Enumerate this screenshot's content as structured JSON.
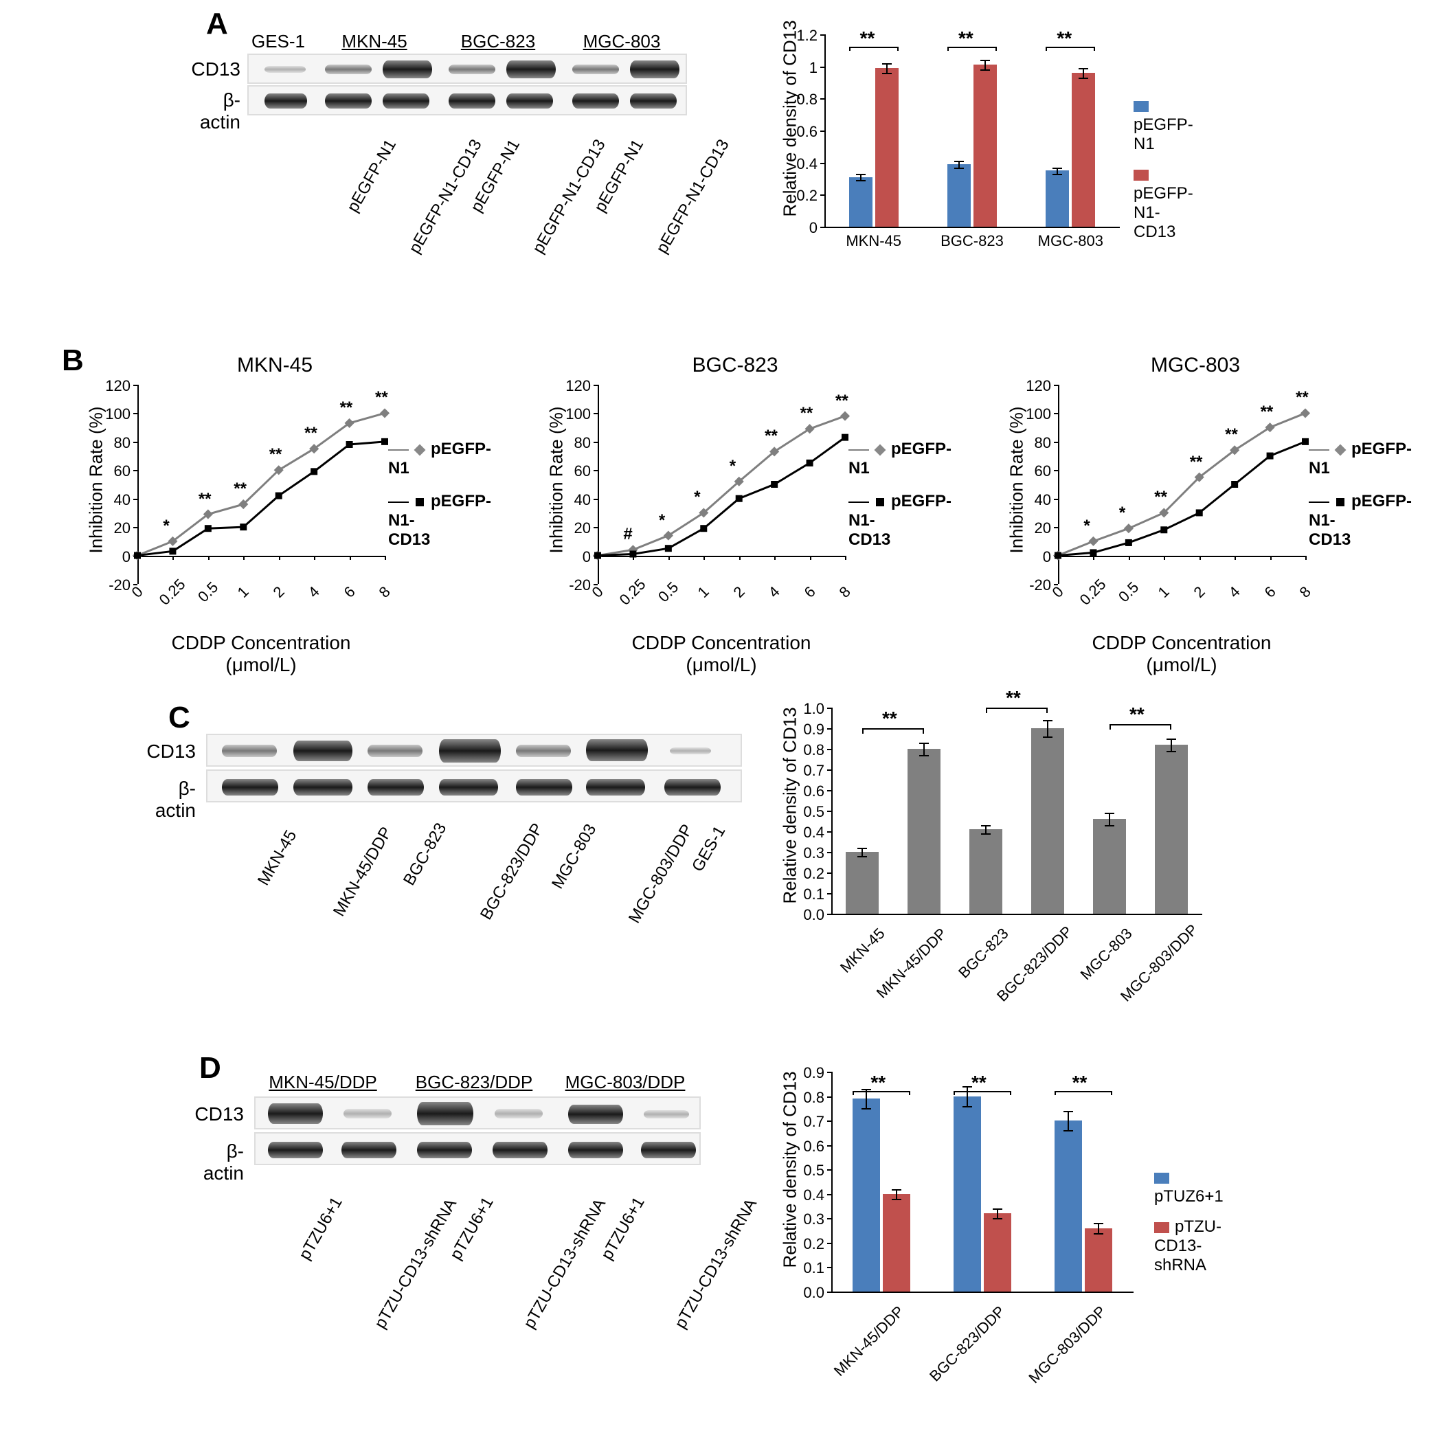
{
  "panels": {
    "A": "A",
    "B": "B",
    "C": "C",
    "D": "D"
  },
  "colors": {
    "blue": "#4a7ebb",
    "red": "#c0504d",
    "gray": "#808080",
    "line_gray": "#7f7f7f",
    "line_black": "#000000",
    "background": "#ffffff"
  },
  "panelA": {
    "blot": {
      "rows": [
        "CD13",
        "β-actin"
      ],
      "head_groups": [
        "GES-1",
        "MKN-45",
        "BGC-823",
        "MGC-803"
      ],
      "lane_labels": [
        "pEGFP-N1",
        "pEGFP-N1-CD13",
        "pEGFP-N1",
        "pEGFP-N1-CD13",
        "pEGFP-N1",
        "pEGFP-N1-CD13"
      ]
    },
    "chart": {
      "y_title": "Relative density of CD13",
      "ylim": [
        0,
        1.2
      ],
      "ytick_step": 0.2,
      "categories": [
        "MKN-45",
        "BGC-823",
        "MGC-803"
      ],
      "series": [
        {
          "name": "pEGFP-N1",
          "color": "#4a7ebb",
          "values": [
            0.31,
            0.39,
            0.35
          ],
          "err": [
            0.02,
            0.02,
            0.02
          ]
        },
        {
          "name": "pEGFP-N1-CD13",
          "color": "#c0504d",
          "values": [
            0.99,
            1.01,
            0.96
          ],
          "err": [
            0.03,
            0.03,
            0.03
          ]
        }
      ],
      "sig": [
        "**",
        "**",
        "**"
      ]
    }
  },
  "panelB": {
    "titles": [
      "MKN-45",
      "BGC-823",
      "MGC-803"
    ],
    "x_title": "CDDP Concentration (μmol/L)",
    "y_title": "Inhibition Rate (%)",
    "xticks": [
      "0",
      "0.25",
      "0.5",
      "1",
      "2",
      "4",
      "6",
      "8"
    ],
    "ylim": [
      -20,
      120
    ],
    "ytick_step": 20,
    "legend": [
      "pEGFP-N1",
      "pEGFP-N1-CD13"
    ],
    "charts": [
      {
        "s1": [
          0,
          10,
          29,
          36,
          60,
          75,
          93,
          100
        ],
        "s2": [
          0,
          3,
          19,
          20,
          42,
          59,
          78,
          80
        ],
        "sig": [
          "",
          "*",
          "**",
          "**",
          "**",
          "**",
          "**",
          "**"
        ]
      },
      {
        "s1": [
          0,
          4,
          14,
          30,
          52,
          73,
          89,
          98
        ],
        "s2": [
          0,
          1,
          5,
          19,
          40,
          50,
          65,
          83
        ],
        "sig": [
          "",
          "#",
          "*",
          "*",
          "*",
          "**",
          "**",
          "**"
        ]
      },
      {
        "s1": [
          0,
          10,
          19,
          30,
          55,
          74,
          90,
          100
        ],
        "s2": [
          0,
          2,
          9,
          18,
          30,
          50,
          70,
          80
        ],
        "sig": [
          "",
          "*",
          "*",
          "**",
          "**",
          "**",
          "**",
          "**"
        ]
      }
    ]
  },
  "panelC": {
    "blot": {
      "rows": [
        "CD13",
        "β-actin"
      ],
      "lanes": [
        "MKN-45",
        "MKN-45/DDP",
        "BGC-823",
        "BGC-823/DDP",
        "MGC-803",
        "MGC-803/DDP",
        "GES-1"
      ]
    },
    "chart": {
      "y_title": "Relative density of CD13",
      "ylim": [
        0,
        1
      ],
      "ytick_step": 0.1,
      "categories": [
        "MKN-45",
        "MKN-45/DDP",
        "BGC-823",
        "BGC-823/DDP",
        "MGC-803",
        "MGC-803/DDP"
      ],
      "values": [
        0.3,
        0.8,
        0.41,
        0.9,
        0.46,
        0.82
      ],
      "err": [
        0.02,
        0.03,
        0.02,
        0.04,
        0.03,
        0.03
      ],
      "sig": [
        "**",
        "**",
        "**"
      ]
    }
  },
  "panelD": {
    "blot": {
      "rows": [
        "CD13",
        "β-actin"
      ],
      "head_groups": [
        "MKN-45/DDP",
        "BGC-823/DDP",
        "MGC-803/DDP"
      ],
      "lane_labels": [
        "pTZU6+1",
        "pTZU-CD13-shRNA",
        "pTZU6+1",
        "pTZU-CD13-shRNA",
        "pTZU6+1",
        "pTZU-CD13-shRNA"
      ]
    },
    "chart": {
      "y_title": "Relative density of CD13",
      "ylim": [
        0,
        0.9
      ],
      "ytick_step": 0.1,
      "categories": [
        "MKN-45/DDP",
        "BGC-823/DDP",
        "MGC-803/DDP"
      ],
      "series": [
        {
          "name": "pTUZ6+1",
          "color": "#4a7ebb",
          "values": [
            0.79,
            0.8,
            0.7
          ],
          "err": [
            0.04,
            0.04,
            0.04
          ]
        },
        {
          "name": "pTZU-CD13-shRNA",
          "color": "#c0504d",
          "values": [
            0.4,
            0.32,
            0.26
          ],
          "err": [
            0.02,
            0.02,
            0.02
          ]
        }
      ],
      "sig": [
        "**",
        "**",
        "**"
      ]
    }
  }
}
